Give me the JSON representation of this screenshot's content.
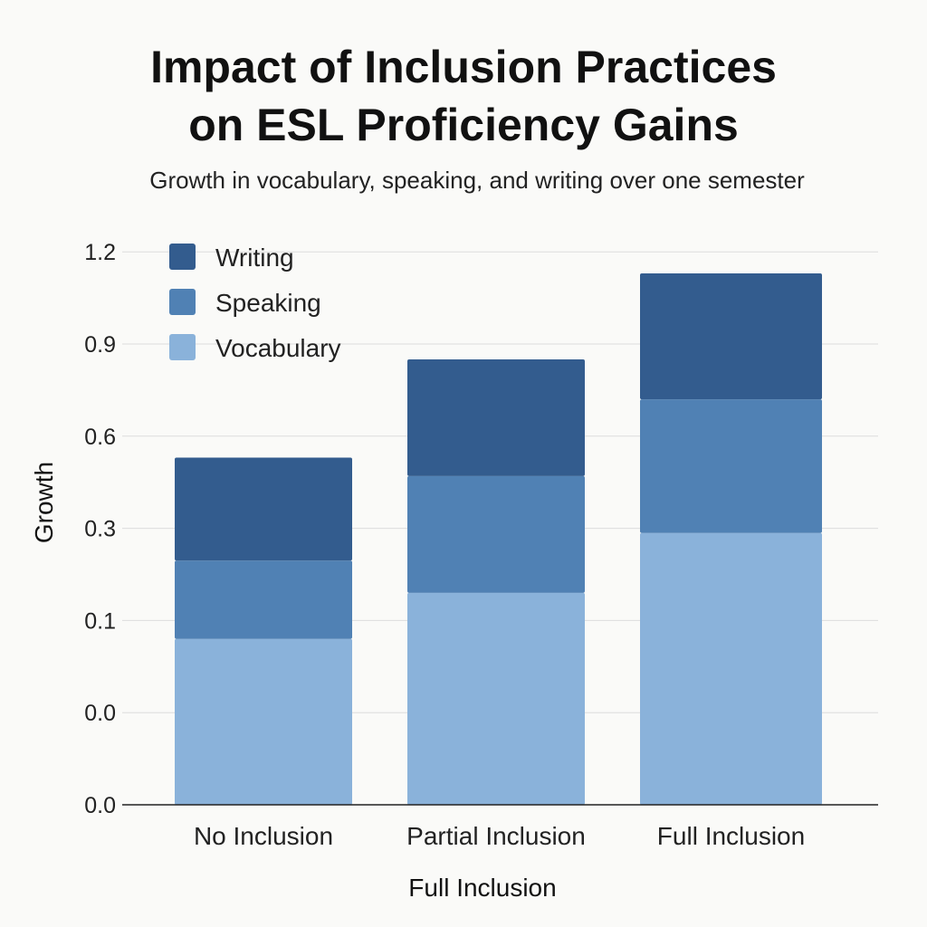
{
  "title_line1": "Impact of Inclusion Practices",
  "title_line2": "on ESL Proficiency Gains",
  "subtitle": "Growth in vocabulary, speaking, and writing over one semester",
  "chart_data": {
    "type": "bar",
    "stacked": true,
    "categories": [
      "No Inclusion",
      "Partial Inclusion",
      "Full Inclusion"
    ],
    "series": [
      {
        "name": "Vocabulary",
        "values": [
          0.08,
          0.16,
          0.29
        ],
        "color": "#8ab2da"
      },
      {
        "name": "Speaking",
        "values": [
          0.15,
          0.31,
          0.43
        ],
        "color": "#5081b4"
      },
      {
        "name": "Writing",
        "values": [
          0.3,
          0.38,
          0.41
        ],
        "color": "#335c8e"
      }
    ],
    "y_tick_labels": [
      "0.0",
      "0.0",
      "0.1",
      "0.3",
      "0.6",
      "0.9",
      "1.2"
    ],
    "xlabel": "Full Inclusion",
    "ylabel": "Growth",
    "grid": true,
    "legend_position": "top-left",
    "legend_order": [
      "Writing",
      "Speaking",
      "Vocabulary"
    ]
  }
}
